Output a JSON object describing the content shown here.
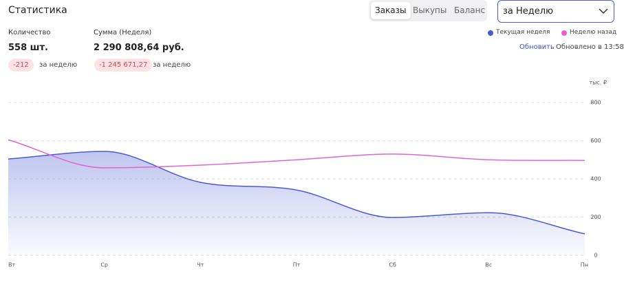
{
  "header": {
    "title": "Статистика",
    "tabs": [
      "Заказы",
      "Выкупы",
      "Баланс"
    ],
    "active_tab": 0,
    "period_select": "за Неделю"
  },
  "stats": [
    {
      "label": "Количество",
      "value": "558 шт.",
      "delta": "-212",
      "delta_note": "за неделю"
    },
    {
      "label": "Сумма (Неделя)",
      "value": "2 290 808,64 руб.",
      "delta": "-1 245 671,27",
      "delta_note": "за неделю"
    }
  ],
  "refresh": "Обновить",
  "updated": "Обновлено в 13:58",
  "chart_data": {
    "type": "line",
    "y_axis_label": "тыс. ₽",
    "categories": [
      "Вт",
      "Ср",
      "Чт",
      "Пт",
      "Сб",
      "Вс",
      "Пн"
    ],
    "series": [
      {
        "name": "Текущая неделя",
        "color": "#4a5bd0",
        "area": true,
        "values": [
          504,
          544,
          382,
          342,
          198,
          223,
          112
        ]
      },
      {
        "name": "Неделю назад",
        "color": "#e064d2",
        "area": false,
        "values": [
          605,
          458,
          472,
          500,
          530,
          500,
          497
        ]
      }
    ],
    "ylim": [
      0,
      800
    ],
    "yticks": [
      0,
      200,
      400,
      600,
      800
    ],
    "grid": true,
    "legend": "top-right"
  }
}
